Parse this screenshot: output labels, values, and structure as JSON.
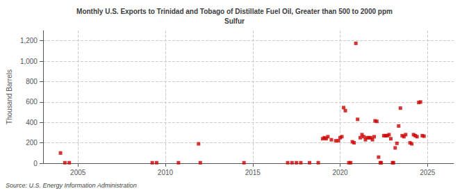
{
  "chart_data": {
    "type": "scatter",
    "title": "Monthly U.S. Exports to Trinidad and Tobago of Distillate Fuel Oil, Greater than 500 to 2000 ppm\nSulfur",
    "ylabel": "Thousand Barrels",
    "annotations": [
      "Source: U.S. Energy Information Administration"
    ],
    "color": "#cc0000",
    "marker": "square",
    "grid": true,
    "xlim": [
      2003.0,
      2026.5
    ],
    "ylim": [
      0,
      1300
    ],
    "xticks": [
      2005,
      2010,
      2015,
      2020,
      2025
    ],
    "yticks": [
      0,
      200,
      400,
      600,
      800,
      {
        "value": 1000,
        "label": "1,000"
      },
      {
        "value": 1200,
        "label": "1,200"
      }
    ],
    "x": [
      2004.0,
      2004.25,
      2004.5,
      2009.25,
      2009.5,
      2010.75,
      2011.9,
      2012.0,
      2014.5,
      2017.0,
      2017.25,
      2017.5,
      2017.75,
      2018.25,
      2018.75,
      2019.0,
      2019.1,
      2019.2,
      2019.3,
      2019.5,
      2019.75,
      2019.9,
      2020.0,
      2020.1,
      2020.2,
      2020.3,
      2020.5,
      2020.6,
      2020.7,
      2020.8,
      2020.9,
      2021.0,
      2021.15,
      2021.25,
      2021.35,
      2021.45,
      2021.55,
      2021.65,
      2021.75,
      2021.85,
      2021.95,
      2022.0,
      2022.1,
      2022.2,
      2022.3,
      2022.35,
      2022.5,
      2022.6,
      2022.7,
      2022.8,
      2022.9,
      2023.0,
      2023.05,
      2023.15,
      2023.25,
      2023.35,
      2023.45,
      2023.55,
      2023.65,
      2023.75,
      2024.0,
      2024.1,
      2024.2,
      2024.3,
      2024.4,
      2024.5,
      2024.6,
      2024.7,
      2024.8
    ],
    "values": [
      100,
      5,
      5,
      5,
      5,
      5,
      190,
      5,
      5,
      5,
      5,
      5,
      5,
      5,
      5,
      240,
      250,
      240,
      260,
      230,
      220,
      220,
      250,
      260,
      545,
      515,
      5,
      5,
      210,
      200,
      1175,
      430,
      250,
      280,
      260,
      230,
      250,
      250,
      250,
      230,
      260,
      415,
      410,
      60,
      5,
      5,
      270,
      270,
      270,
      280,
      240,
      5,
      5,
      150,
      195,
      365,
      540,
      270,
      260,
      280,
      200,
      190,
      280,
      270,
      260,
      595,
      600,
      270,
      265
    ]
  }
}
